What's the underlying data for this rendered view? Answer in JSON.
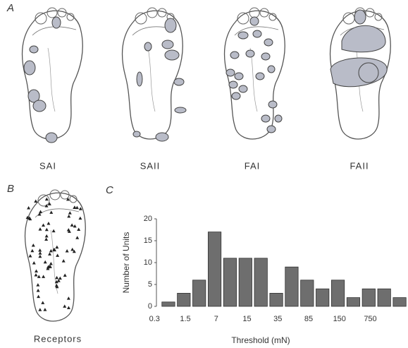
{
  "panel_a": {
    "label": "A",
    "captions": [
      "SAI",
      "SAII",
      "FAI",
      "FAII"
    ]
  },
  "panel_b": {
    "label": "B",
    "caption": "Receptors"
  },
  "chart_data": {
    "type": "bar",
    "panel_label": "C",
    "x_label": "Threshold (mN)",
    "y_label": "Number of Units",
    "categories": [
      "0.3",
      null,
      "1.5",
      null,
      "7",
      null,
      "15",
      null,
      "35",
      null,
      "85",
      null,
      "150",
      null,
      "750",
      null
    ],
    "values": [
      1,
      3,
      6,
      17,
      11,
      11,
      11,
      3,
      9,
      6,
      4,
      6,
      2,
      4,
      4,
      2
    ],
    "color": "#6e6e6e",
    "ylim": [
      0,
      20
    ],
    "yticks": [
      0,
      5,
      10,
      15,
      20
    ]
  }
}
